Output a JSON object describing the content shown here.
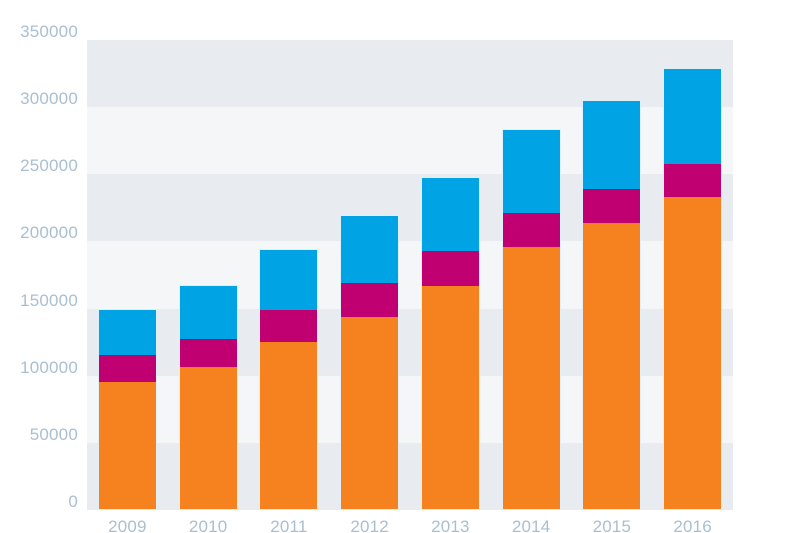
{
  "chart_data": {
    "type": "bar",
    "stacked": true,
    "title": "",
    "categories": [
      "2009",
      "2010",
      "2011",
      "2012",
      "2013",
      "2014",
      "2015",
      "2016"
    ],
    "series": [
      {
        "name": "orange-bottom-segment",
        "color": "#f5821f",
        "values": [
          94500,
          106000,
          124500,
          143000,
          166000,
          195000,
          213000,
          232500
        ]
      },
      {
        "name": "magenta-middle-segment",
        "color": "#c00070",
        "values": [
          20000,
          21000,
          24000,
          25500,
          26000,
          25500,
          25500,
          24500
        ]
      },
      {
        "name": "blue-top-segment",
        "color": "#00a4e4",
        "values": [
          33500,
          39500,
          44500,
          50000,
          54500,
          62000,
          65500,
          71000
        ]
      }
    ],
    "totals": [
      148000,
      166500,
      193000,
      218500,
      246500,
      282500,
      304000,
      328000
    ],
    "y_axis": {
      "min": 0,
      "max": 350000,
      "tick_step": 50000,
      "tick_labels": [
        "350000",
        "300000",
        "250000",
        "200000",
        "150000",
        "100000",
        "50000",
        "0"
      ]
    },
    "legend": "none",
    "grid_bands": "horizontal alternating"
  },
  "colors": {
    "background": "#ffffff",
    "band_dark": "#e8ecf0",
    "band_light": "#f4f6f8",
    "axis_label": "#a9bfd2",
    "bar_outline": "#dfeef7"
  }
}
